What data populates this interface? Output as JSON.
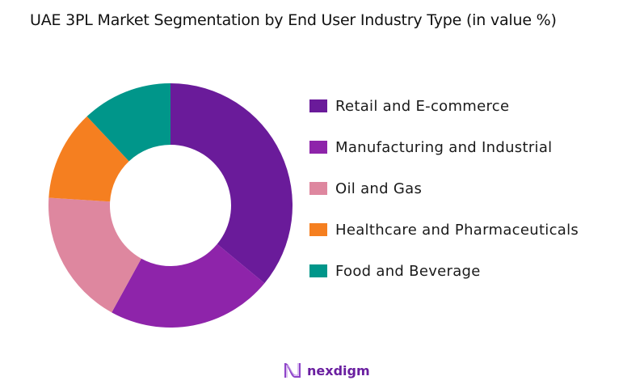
{
  "title": "UAE 3PL Market Segmentation by End User Industry  Type (in value %)",
  "brand": {
    "name": "nexdigm",
    "color": "#6a1fa0"
  },
  "chart_data": {
    "type": "pie",
    "subtype": "donut",
    "title": "UAE 3PL Market Segmentation by End User Industry  Type (in value %)",
    "categories": [
      "Retail and E-commerce",
      "Manufacturing and Industrial",
      "Oil and Gas",
      "Healthcare and Pharmaceuticals",
      "Food and Beverage"
    ],
    "values": [
      36,
      22,
      18,
      12,
      12
    ],
    "colors": [
      "#6a1b9a",
      "#8e24aa",
      "#de879f",
      "#f57f20",
      "#00968a"
    ],
    "legend_position": "right",
    "start_angle": "top, clockwise"
  },
  "legend": {
    "items": [
      {
        "label": "Retail and E-commerce",
        "color": "#6a1b9a"
      },
      {
        "label": "Manufacturing and Industrial",
        "color": "#8e24aa"
      },
      {
        "label": "Oil and Gas",
        "color": "#de879f"
      },
      {
        "label": "Healthcare and Pharmaceuticals",
        "color": "#f57f20"
      },
      {
        "label": "Food and Beverage",
        "color": "#00968a"
      }
    ]
  }
}
